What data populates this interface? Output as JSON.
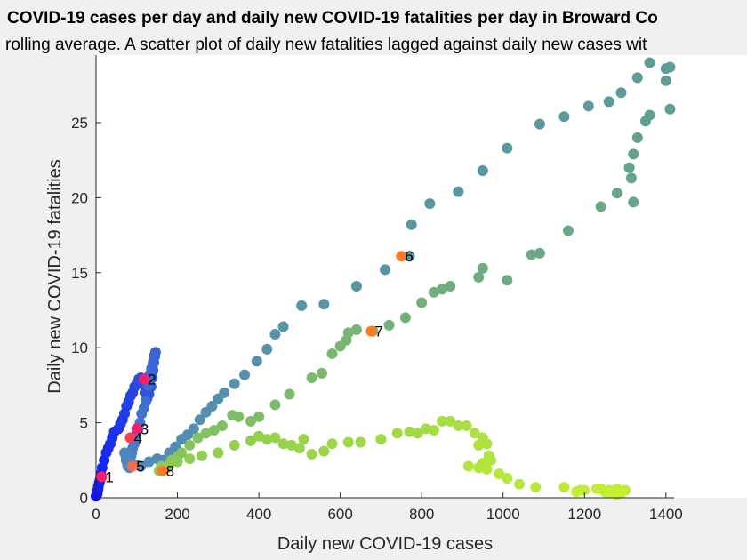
{
  "chart_data": {
    "type": "scatter",
    "title": "COVID-19 cases per day and daily new COVID-19 fatalities per day in Broward Co",
    "subtitle": "rolling average. A scatter plot of daily new fatalities lagged against daily new cases wit",
    "xlabel": "Daily new COVID-19 cases",
    "ylabel": "Daily new COVID-19 fatalities",
    "xlim": [
      0,
      1420
    ],
    "ylim": [
      0,
      29.5
    ],
    "xticks": [
      0,
      200,
      400,
      600,
      800,
      1000,
      1200,
      1400
    ],
    "yticks": [
      0,
      5,
      10,
      15,
      20,
      25
    ],
    "grid": false,
    "color_stops": [
      "#0a12ff",
      "#4a82c6",
      "#5e9e96",
      "#8fce4e",
      "#c6f233"
    ],
    "points": [
      [
        0,
        0.1
      ],
      [
        2,
        0.2
      ],
      [
        3,
        0.3
      ],
      [
        4,
        0.5
      ],
      [
        5,
        0.6
      ],
      [
        6,
        0.8
      ],
      [
        8,
        1.0
      ],
      [
        10,
        1.2
      ],
      [
        12,
        1.6
      ],
      [
        15,
        2.0
      ],
      [
        20,
        2.5
      ],
      [
        25,
        3.0
      ],
      [
        30,
        3.3
      ],
      [
        35,
        3.6
      ],
      [
        40,
        4.0
      ],
      [
        45,
        4.4
      ],
      [
        55,
        4.6
      ],
      [
        60,
        4.9
      ],
      [
        65,
        5.2
      ],
      [
        70,
        5.6
      ],
      [
        75,
        6.1
      ],
      [
        80,
        6.4
      ],
      [
        85,
        6.8
      ],
      [
        90,
        7.0
      ],
      [
        95,
        7.4
      ],
      [
        100,
        7.6
      ],
      [
        105,
        7.9
      ],
      [
        110,
        8.0
      ],
      [
        115,
        7.6
      ],
      [
        120,
        7.0
      ],
      [
        125,
        6.6
      ],
      [
        130,
        6.9
      ],
      [
        135,
        7.4
      ],
      [
        138,
        8.0
      ],
      [
        140,
        8.5
      ],
      [
        142,
        9.0
      ],
      [
        144,
        9.4
      ],
      [
        146,
        9.7
      ],
      [
        144,
        9.5
      ],
      [
        140,
        9.0
      ],
      [
        136,
        8.6
      ],
      [
        132,
        8.2
      ],
      [
        128,
        7.5
      ],
      [
        122,
        6.4
      ],
      [
        118,
        6.0
      ],
      [
        112,
        5.6
      ],
      [
        108,
        5.0
      ],
      [
        104,
        4.6
      ],
      [
        98,
        4.2
      ],
      [
        94,
        3.6
      ],
      [
        90,
        3.3
      ],
      [
        88,
        3.0
      ],
      [
        86,
        2.8
      ],
      [
        84,
        2.6
      ],
      [
        82,
        2.4
      ],
      [
        80,
        2.3
      ],
      [
        78,
        2.1
      ],
      [
        76,
        2.4
      ],
      [
        74,
        2.7
      ],
      [
        72,
        2.9
      ],
      [
        70,
        3.0
      ],
      [
        74,
        2.5
      ],
      [
        78,
        2.2
      ],
      [
        82,
        2.0
      ],
      [
        90,
        2.1
      ],
      [
        100,
        2.2
      ],
      [
        110,
        2.1
      ],
      [
        130,
        2.4
      ],
      [
        150,
        2.6
      ],
      [
        165,
        2.5
      ],
      [
        180,
        3.0
      ],
      [
        195,
        3.4
      ],
      [
        210,
        3.9
      ],
      [
        225,
        4.2
      ],
      [
        240,
        4.6
      ],
      [
        255,
        5.2
      ],
      [
        270,
        5.7
      ],
      [
        285,
        6.1
      ],
      [
        300,
        6.6
      ],
      [
        315,
        7.0
      ],
      [
        340,
        7.6
      ],
      [
        365,
        8.2
      ],
      [
        395,
        9.1
      ],
      [
        420,
        9.9
      ],
      [
        440,
        10.9
      ],
      [
        460,
        11.4
      ],
      [
        505,
        12.8
      ],
      [
        560,
        12.9
      ],
      [
        640,
        14.1
      ],
      [
        710,
        15.2
      ],
      [
        770,
        16.1
      ],
      [
        775,
        18.2
      ],
      [
        820,
        19.6
      ],
      [
        890,
        20.4
      ],
      [
        950,
        21.8
      ],
      [
        1010,
        23.3
      ],
      [
        1090,
        24.9
      ],
      [
        1150,
        25.4
      ],
      [
        1210,
        26.1
      ],
      [
        1260,
        26.4
      ],
      [
        1290,
        27.0
      ],
      [
        1330,
        28.0
      ],
      [
        1360,
        29.0
      ],
      [
        1400,
        28.6
      ],
      [
        1410,
        28.7
      ],
      [
        1400,
        27.8
      ],
      [
        1410,
        25.9
      ],
      [
        1360,
        25.5
      ],
      [
        1350,
        25.1
      ],
      [
        1330,
        24.0
      ],
      [
        1320,
        22.9
      ],
      [
        1310,
        22.0
      ],
      [
        1315,
        21.3
      ],
      [
        1320,
        19.7
      ],
      [
        1280,
        20.3
      ],
      [
        1240,
        19.4
      ],
      [
        1160,
        17.8
      ],
      [
        1090,
        16.3
      ],
      [
        1070,
        16.2
      ],
      [
        1010,
        14.5
      ],
      [
        950,
        15.3
      ],
      [
        940,
        14.7
      ],
      [
        870,
        14.1
      ],
      [
        850,
        13.9
      ],
      [
        830,
        13.7
      ],
      [
        800,
        13.0
      ],
      [
        760,
        12.0
      ],
      [
        720,
        11.5
      ],
      [
        680,
        11.1
      ],
      [
        640,
        11.2
      ],
      [
        620,
        11.0
      ],
      [
        615,
        10.5
      ],
      [
        600,
        10.1
      ],
      [
        580,
        9.6
      ],
      [
        555,
        8.3
      ],
      [
        530,
        8.0
      ],
      [
        475,
        6.9
      ],
      [
        440,
        6.2
      ],
      [
        400,
        5.4
      ],
      [
        380,
        5.1
      ],
      [
        350,
        5.4
      ],
      [
        335,
        5.5
      ],
      [
        310,
        4.8
      ],
      [
        290,
        4.5
      ],
      [
        270,
        4.3
      ],
      [
        250,
        4.0
      ],
      [
        230,
        3.5
      ],
      [
        210,
        3.0
      ],
      [
        200,
        2.7
      ],
      [
        185,
        2.5
      ],
      [
        175,
        2.0
      ],
      [
        165,
        1.9
      ],
      [
        155,
        1.8
      ],
      [
        160,
        2.1
      ],
      [
        180,
        2.2
      ],
      [
        200,
        2.4
      ],
      [
        230,
        2.6
      ],
      [
        260,
        2.8
      ],
      [
        300,
        3.0
      ],
      [
        340,
        3.5
      ],
      [
        380,
        3.8
      ],
      [
        400,
        4.1
      ],
      [
        420,
        3.9
      ],
      [
        440,
        4.0
      ],
      [
        460,
        3.6
      ],
      [
        480,
        3.5
      ],
      [
        500,
        3.3
      ],
      [
        510,
        3.9
      ],
      [
        530,
        2.9
      ],
      [
        560,
        3.1
      ],
      [
        580,
        3.6
      ],
      [
        620,
        3.7
      ],
      [
        650,
        3.7
      ],
      [
        700,
        3.9
      ],
      [
        740,
        4.3
      ],
      [
        770,
        4.4
      ],
      [
        790,
        4.3
      ],
      [
        810,
        4.6
      ],
      [
        830,
        4.5
      ],
      [
        850,
        5.1
      ],
      [
        870,
        5.1
      ],
      [
        890,
        4.8
      ],
      [
        910,
        4.8
      ],
      [
        930,
        4.3
      ],
      [
        950,
        4.0
      ],
      [
        960,
        3.6
      ],
      [
        940,
        3.5
      ],
      [
        965,
        2.8
      ],
      [
        970,
        2.5
      ],
      [
        950,
        2.3
      ],
      [
        940,
        2.0
      ],
      [
        915,
        2.1
      ],
      [
        960,
        1.9
      ],
      [
        990,
        1.6
      ],
      [
        1010,
        1.3
      ],
      [
        1040,
        0.9
      ],
      [
        1080,
        0.7
      ],
      [
        1150,
        0.7
      ],
      [
        1190,
        0.5
      ],
      [
        1240,
        0.6
      ],
      [
        1260,
        0.5
      ],
      [
        1280,
        0.6
      ],
      [
        1300,
        0.5
      ],
      [
        1250,
        0.4
      ],
      [
        1230,
        0.6
      ],
      [
        1200,
        0.5
      ],
      [
        1180,
        0.4
      ],
      [
        1260,
        0.3
      ],
      [
        1280,
        0.2
      ],
      [
        1290,
        0.3
      ]
    ],
    "highlights": [
      {
        "label": "1",
        "x": 14,
        "y": 1.4,
        "color": "#ff1a6a"
      },
      {
        "label": "2",
        "x": 118,
        "y": 7.9,
        "color": "#ff1a6a"
      },
      {
        "label": "3",
        "x": 100,
        "y": 4.6,
        "color": "#ff1a6a"
      },
      {
        "label": "4",
        "x": 84,
        "y": 4.0,
        "color": "#ff3a5a"
      },
      {
        "label": "5",
        "x": 90,
        "y": 2.1,
        "color": "#ff6a40"
      },
      {
        "label": "6",
        "x": 750,
        "y": 16.1,
        "color": "#ff7a20"
      },
      {
        "label": "7",
        "x": 676,
        "y": 11.1,
        "color": "#ff7a20"
      },
      {
        "label": "8",
        "x": 163,
        "y": 1.8,
        "color": "#ff7a20"
      }
    ]
  }
}
